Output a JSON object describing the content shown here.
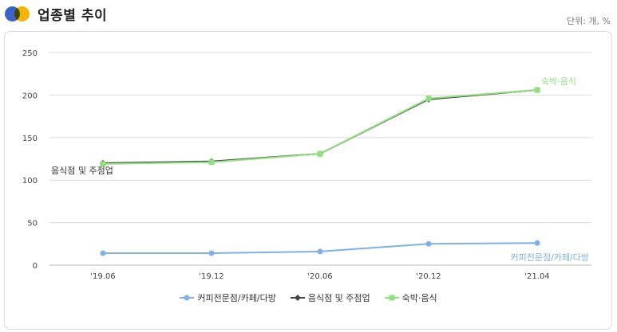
{
  "page": {
    "title": "업종별 추이",
    "unit_label": "단위: 개, %"
  },
  "colors": {
    "brand_blue": "#3d63c9",
    "brand_yellow": "#f4b400",
    "cafe": "#7eb0ea",
    "restaurant": "#444444",
    "lodging": "#90e080"
  },
  "chart_data": {
    "type": "line",
    "categories": [
      "'19.06",
      "'19.12",
      "'20.06",
      "'20.12",
      "'21.04"
    ],
    "ylim": [
      0,
      250
    ],
    "yticks": [
      0,
      50,
      100,
      150,
      200,
      250
    ],
    "grid": true,
    "legend_position": "bottom",
    "series": [
      {
        "name": "커피전문점/카페/다방",
        "values": [
          14,
          14,
          16,
          25,
          26
        ],
        "color": "#7eb0ea",
        "marker": "circle",
        "end_label": "커피전문점/카페/다방"
      },
      {
        "name": "음식점 및 주점업",
        "values": [
          120,
          122,
          131,
          195,
          206
        ],
        "color": "#444444",
        "marker": "diamond",
        "start_label": "음식점 및 주점업"
      },
      {
        "name": "숙박·음식",
        "values": [
          119,
          121,
          131,
          196,
          206
        ],
        "color": "#90e080",
        "marker": "square",
        "end_label": "숙박·음식"
      }
    ]
  }
}
